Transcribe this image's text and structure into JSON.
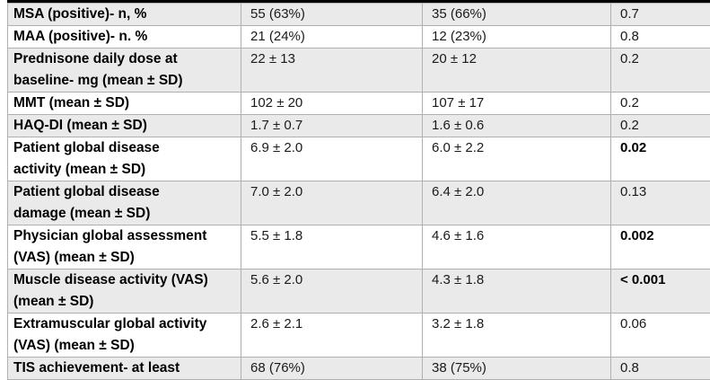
{
  "table": {
    "title": "baseline-characteristics-comparison-table",
    "style": {
      "shaded_row_color": "#eaeaea",
      "border_color": "#b0b0b0",
      "top_bar_color": "#000000",
      "label_text_color": "#000000",
      "value_text_color": "#1a1a1a"
    },
    "rows": [
      {
        "label": "MSA (positive)- n, %",
        "group1": "55 (63%)",
        "group2": "35 (66%)",
        "p": "0.7",
        "shaded": true,
        "p_bold": false
      },
      {
        "label": "MAA (positive)- n. %",
        "group1": "21 (24%)",
        "group2": "12 (23%)",
        "p": "0.8",
        "shaded": false,
        "p_bold": false
      },
      {
        "label": "Prednisone daily dose at\nbaseline- mg (mean ± SD)",
        "group1": "22 ± 13",
        "group2": "20 ± 12",
        "p": "0.2",
        "shaded": true,
        "p_bold": false
      },
      {
        "label": "MMT (mean ± SD)",
        "group1": "102 ± 20",
        "group2": "107 ± 17",
        "p": "0.2",
        "shaded": false,
        "p_bold": false
      },
      {
        "label": "HAQ-DI (mean ± SD)",
        "group1": "1.7 ± 0.7",
        "group2": "1.6 ± 0.6",
        "p": "0.2",
        "shaded": true,
        "p_bold": false
      },
      {
        "label": "Patient global disease\nactivity (mean ± SD)",
        "group1": "6.9 ± 2.0",
        "group2": "6.0 ± 2.2",
        "p": "0.02",
        "shaded": false,
        "p_bold": true
      },
      {
        "label": "Patient global disease\ndamage (mean ± SD)",
        "group1": "7.0 ± 2.0",
        "group2": "6.4 ± 2.0",
        "p": "0.13",
        "shaded": true,
        "p_bold": false
      },
      {
        "label": "Physician global assessment\n(VAS) (mean ± SD)",
        "group1": "5.5 ± 1.8",
        "group2": "4.6 ± 1.6",
        "p": "0.002",
        "shaded": false,
        "p_bold": true
      },
      {
        "label": "Muscle disease activity (VAS)\n(mean ± SD)",
        "group1": "5.6 ± 2.0",
        "group2": "4.3 ± 1.8",
        "p": "< 0.001",
        "shaded": true,
        "p_bold": true
      },
      {
        "label": "Extramuscular global activity\n(VAS) (mean ± SD)",
        "group1": "2.6 ± 2.1",
        "group2": "3.2 ± 1.8",
        "p": "0.06",
        "shaded": false,
        "p_bold": false
      },
      {
        "label": "TIS achievement- at least",
        "group1": "68 (76%)",
        "group2": "38 (75%)",
        "p": "0.8",
        "shaded": true,
        "p_bold": false
      }
    ]
  }
}
